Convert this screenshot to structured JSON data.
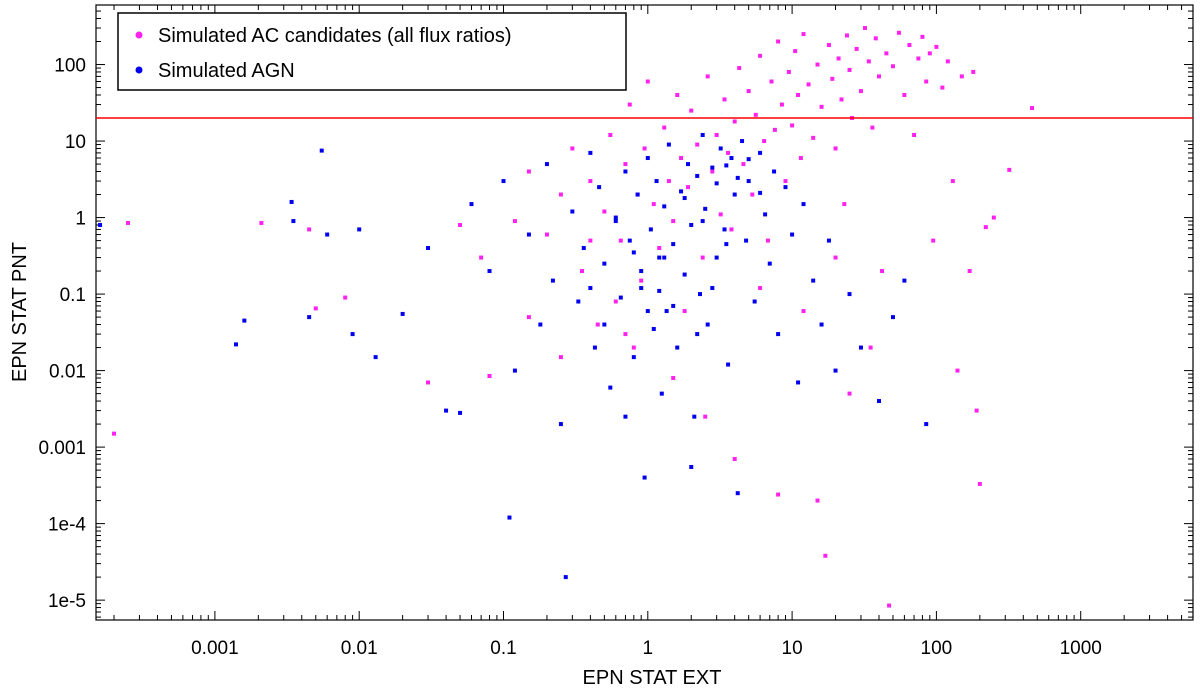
{
  "chart_data": {
    "type": "scatter",
    "xlabel": "EPN STAT EXT",
    "ylabel": "EPN STAT PNT",
    "x_scale": "log",
    "y_scale": "log",
    "xlim": [
      0.00015,
      6000
    ],
    "ylim": [
      5.5e-06,
      600
    ],
    "x_ticks": [
      {
        "value": 0.001,
        "label": "0.001"
      },
      {
        "value": 0.01,
        "label": "0.01"
      },
      {
        "value": 0.1,
        "label": "0.1"
      },
      {
        "value": 1,
        "label": "1"
      },
      {
        "value": 10,
        "label": "10"
      },
      {
        "value": 100,
        "label": "100"
      },
      {
        "value": 1000,
        "label": "1000"
      }
    ],
    "y_ticks": [
      {
        "value": 1e-05,
        "label": "1e-5"
      },
      {
        "value": 0.0001,
        "label": "1e-4"
      },
      {
        "value": 0.001,
        "label": "0.001"
      },
      {
        "value": 0.01,
        "label": "0.01"
      },
      {
        "value": 0.1,
        "label": "0.1"
      },
      {
        "value": 1,
        "label": "1"
      },
      {
        "value": 10,
        "label": "10"
      },
      {
        "value": 100,
        "label": "100"
      }
    ],
    "grid": false,
    "legend_position": "top-left",
    "threshold_line": {
      "y": 20,
      "color": "#ff0000"
    },
    "series": [
      {
        "name": "Simulated AC candidates (all flux ratios)",
        "color": "#ff22ee",
        "points": [
          [
            0.00025,
            0.85
          ],
          [
            0.0002,
            0.0015
          ],
          [
            0.0021,
            0.85
          ],
          [
            0.005,
            0.065
          ],
          [
            0.0045,
            0.7
          ],
          [
            0.008,
            0.09
          ],
          [
            0.03,
            0.007
          ],
          [
            0.05,
            0.8
          ],
          [
            0.07,
            0.3
          ],
          [
            0.08,
            0.0085
          ],
          [
            0.15,
            0.05
          ],
          [
            0.2,
            0.6
          ],
          [
            0.25,
            0.015
          ],
          [
            0.3,
            8
          ],
          [
            0.35,
            0.2
          ],
          [
            0.4,
            3
          ],
          [
            0.45,
            0.04
          ],
          [
            0.5,
            1.2
          ],
          [
            0.55,
            12
          ],
          [
            0.6,
            0.08
          ],
          [
            0.65,
            0.5
          ],
          [
            0.7,
            5
          ],
          [
            0.75,
            30
          ],
          [
            0.8,
            0.02
          ],
          [
            0.85,
            2
          ],
          [
            0.9,
            0.15
          ],
          [
            0.95,
            8
          ],
          [
            1.0,
            60
          ],
          [
            1.1,
            1.5
          ],
          [
            1.2,
            0.4
          ],
          [
            1.3,
            15
          ],
          [
            1.4,
            3
          ],
          [
            1.5,
            0.9
          ],
          [
            1.6,
            40
          ],
          [
            1.7,
            6
          ],
          [
            1.8,
            0.06
          ],
          [
            1.9,
            2.5
          ],
          [
            2.0,
            25
          ],
          [
            2.2,
            9
          ],
          [
            2.4,
            0.3
          ],
          [
            2.6,
            70
          ],
          [
            2.8,
            4
          ],
          [
            3.0,
            12
          ],
          [
            3.2,
            1.1
          ],
          [
            3.4,
            35
          ],
          [
            3.6,
            7
          ],
          [
            3.8,
            0.7
          ],
          [
            4.0,
            18
          ],
          [
            4.3,
            90
          ],
          [
            4.6,
            5
          ],
          [
            5.0,
            45
          ],
          [
            5.3,
            2
          ],
          [
            5.6,
            22
          ],
          [
            6.0,
            130
          ],
          [
            6.4,
            10
          ],
          [
            6.8,
            0.5
          ],
          [
            7.2,
            60
          ],
          [
            7.6,
            14
          ],
          [
            8.0,
            200
          ],
          [
            8.5,
            30
          ],
          [
            9.0,
            3
          ],
          [
            9.5,
            80
          ],
          [
            10,
            16
          ],
          [
            10.5,
            150
          ],
          [
            11,
            40
          ],
          [
            11.5,
            6
          ],
          [
            12,
            250
          ],
          [
            13,
            55
          ],
          [
            14,
            11
          ],
          [
            15,
            100
          ],
          [
            16,
            28
          ],
          [
            17,
            3.8e-05
          ],
          [
            18,
            180
          ],
          [
            19,
            65
          ],
          [
            20,
            8
          ],
          [
            21,
            120
          ],
          [
            22,
            35
          ],
          [
            23,
            1.5
          ],
          [
            24,
            240
          ],
          [
            25,
            85
          ],
          [
            26,
            20
          ],
          [
            28,
            160
          ],
          [
            30,
            45
          ],
          [
            32,
            300
          ],
          [
            34,
            110
          ],
          [
            36,
            15
          ],
          [
            38,
            220
          ],
          [
            40,
            70
          ],
          [
            42,
            0.2
          ],
          [
            45,
            140
          ],
          [
            47,
            8.5e-06
          ],
          [
            50,
            95
          ],
          [
            55,
            260
          ],
          [
            60,
            40
          ],
          [
            65,
            180
          ],
          [
            70,
            12
          ],
          [
            75,
            120
          ],
          [
            80,
            230
          ],
          [
            85,
            60
          ],
          [
            90,
            140
          ],
          [
            95,
            0.5
          ],
          [
            100,
            170
          ],
          [
            110,
            50
          ],
          [
            120,
            110
          ],
          [
            130,
            3
          ],
          [
            140,
            0.01
          ],
          [
            150,
            70
          ],
          [
            170,
            0.2
          ],
          [
            190,
            0.003
          ],
          [
            200,
            0.00033
          ],
          [
            220,
            0.75
          ],
          [
            250,
            1
          ],
          [
            320,
            4.2
          ],
          [
            460,
            27
          ],
          [
            180,
            80
          ],
          [
            15,
            0.0002
          ],
          [
            8,
            0.00024
          ],
          [
            4,
            0.0007
          ],
          [
            2.5,
            0.0025
          ],
          [
            1.5,
            0.008
          ],
          [
            25,
            0.005
          ],
          [
            35,
            0.02
          ],
          [
            12,
            0.06
          ],
          [
            6,
            0.12
          ],
          [
            20,
            0.3
          ],
          [
            0.7,
            0.03
          ],
          [
            0.4,
            0.5
          ],
          [
            0.25,
            2
          ],
          [
            0.15,
            4
          ],
          [
            0.12,
            0.9
          ]
        ]
      },
      {
        "name": "Simulated AGN",
        "color": "#0000ee",
        "points": [
          [
            0.00016,
            0.8
          ],
          [
            0.0014,
            0.022
          ],
          [
            0.0016,
            0.045
          ],
          [
            0.0034,
            1.6
          ],
          [
            0.0035,
            0.9
          ],
          [
            0.0045,
            0.05
          ],
          [
            0.0055,
            7.5
          ],
          [
            0.006,
            0.6
          ],
          [
            0.009,
            0.03
          ],
          [
            0.01,
            0.7
          ],
          [
            0.013,
            0.015
          ],
          [
            0.02,
            0.055
          ],
          [
            0.03,
            0.4
          ],
          [
            0.04,
            0.003
          ],
          [
            0.05,
            0.0028
          ],
          [
            0.06,
            1.5
          ],
          [
            0.08,
            0.2
          ],
          [
            0.1,
            3
          ],
          [
            0.11,
            0.00012
          ],
          [
            0.12,
            0.01
          ],
          [
            0.15,
            0.6
          ],
          [
            0.18,
            0.04
          ],
          [
            0.2,
            5
          ],
          [
            0.22,
            0.15
          ],
          [
            0.25,
            0.002
          ],
          [
            0.27,
            2e-05
          ],
          [
            0.3,
            1.2
          ],
          [
            0.33,
            0.08
          ],
          [
            0.36,
            0.4
          ],
          [
            0.4,
            7
          ],
          [
            0.43,
            0.02
          ],
          [
            0.46,
            2.5
          ],
          [
            0.5,
            0.25
          ],
          [
            0.55,
            0.006
          ],
          [
            0.6,
            1
          ],
          [
            0.65,
            0.09
          ],
          [
            0.7,
            4
          ],
          [
            0.75,
            0.5
          ],
          [
            0.8,
            0.015
          ],
          [
            0.85,
            2
          ],
          [
            0.9,
            0.12
          ],
          [
            0.95,
            0.0004
          ],
          [
            1.0,
            6
          ],
          [
            1.05,
            0.7
          ],
          [
            1.1,
            0.035
          ],
          [
            1.15,
            3
          ],
          [
            1.2,
            0.3
          ],
          [
            1.25,
            0.005
          ],
          [
            1.3,
            1.4
          ],
          [
            1.35,
            0.06
          ],
          [
            1.4,
            9
          ],
          [
            1.5,
            0.45
          ],
          [
            1.6,
            0.02
          ],
          [
            1.7,
            2.2
          ],
          [
            1.8,
            0.18
          ],
          [
            1.9,
            5
          ],
          [
            2.0,
            0.8
          ],
          [
            2.1,
            0.0025
          ],
          [
            2.2,
            3.5
          ],
          [
            2.3,
            0.1
          ],
          [
            2.4,
            12
          ],
          [
            2.5,
            1.3
          ],
          [
            2.6,
            0.04
          ],
          [
            2.8,
            4.5
          ],
          [
            3.0,
            0.3
          ],
          [
            3.2,
            8
          ],
          [
            3.4,
            0.7
          ],
          [
            3.6,
            0.012
          ],
          [
            3.8,
            6
          ],
          [
            4.0,
            2
          ],
          [
            4.2,
            0.00025
          ],
          [
            4.5,
            10
          ],
          [
            4.8,
            0.5
          ],
          [
            5.0,
            3
          ],
          [
            5.5,
            0.08
          ],
          [
            6.0,
            7
          ],
          [
            6.5,
            1.1
          ],
          [
            7.0,
            0.25
          ],
          [
            7.5,
            4
          ],
          [
            8.0,
            0.03
          ],
          [
            9.0,
            2.5
          ],
          [
            10,
            0.6
          ],
          [
            11,
            0.007
          ],
          [
            12,
            1.5
          ],
          [
            14,
            0.15
          ],
          [
            16,
            0.04
          ],
          [
            18,
            0.5
          ],
          [
            20,
            0.01
          ],
          [
            25,
            0.1
          ],
          [
            30,
            0.02
          ],
          [
            40,
            0.004
          ],
          [
            50,
            0.05
          ],
          [
            60,
            0.15
          ],
          [
            85,
            0.002
          ],
          [
            2.0,
            0.00055
          ],
          [
            0.7,
            0.0025
          ],
          [
            0.5,
            0.04
          ],
          [
            1.3,
            0.3
          ],
          [
            1.8,
            1.8
          ],
          [
            2.4,
            0.9
          ],
          [
            3.0,
            2.8
          ],
          [
            3.5,
            4.8
          ],
          [
            4.2,
            3.3
          ],
          [
            5.0,
            5.8
          ],
          [
            6.0,
            2.1
          ],
          [
            1.0,
            0.06
          ],
          [
            1.2,
            0.11
          ],
          [
            0.9,
            0.2
          ],
          [
            0.8,
            0.35
          ],
          [
            1.5,
            0.07
          ],
          [
            2.2,
            0.03
          ],
          [
            2.8,
            0.12
          ],
          [
            3.5,
            0.45
          ],
          [
            0.6,
            0.9
          ],
          [
            0.4,
            0.12
          ]
        ]
      }
    ]
  }
}
